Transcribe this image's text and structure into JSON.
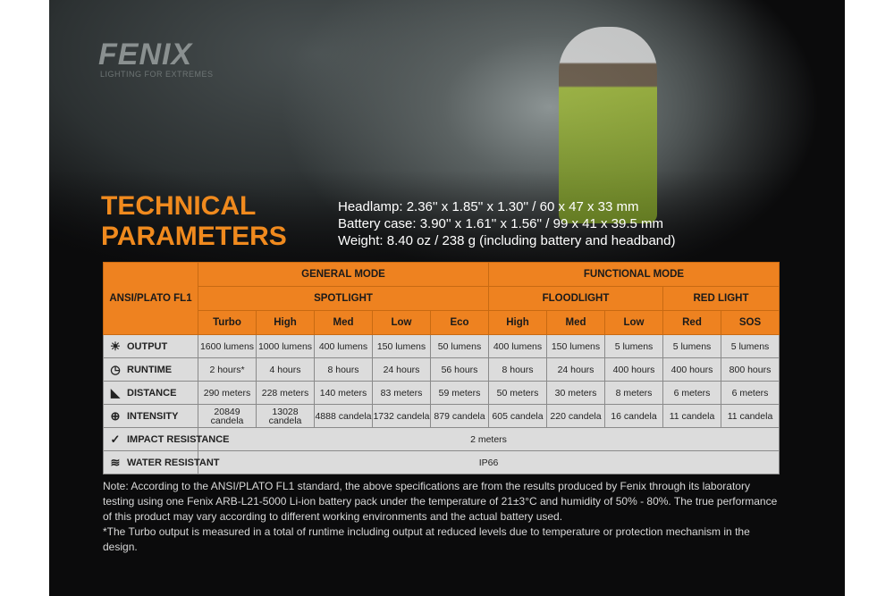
{
  "brand": {
    "logo": "FENIX",
    "tagline": "LIGHTING FOR EXTREMES"
  },
  "title": {
    "line1": "TECHNICAL",
    "line2": "PARAMETERS"
  },
  "specs": [
    "Headlamp: 2.36'' x 1.85'' x 1.30'' / 60 x 47 x 33 mm",
    "Battery case: 3.90'' x 1.61'' x 1.56'' / 99 x 41 x 39.5 mm",
    "Weight: 8.40 oz / 238 g (including battery and headband)"
  ],
  "table": {
    "corner": "ANSI/PLATO FL1",
    "modes": [
      "GENERAL MODE",
      "FUNCTIONAL MODE"
    ],
    "groups": [
      "SPOTLIGHT",
      "FLOODLIGHT",
      "RED LIGHT"
    ],
    "levels": [
      "Turbo",
      "High",
      "Med",
      "Low",
      "Eco",
      "High",
      "Med",
      "Low",
      "Red",
      "SOS"
    ],
    "rows": [
      {
        "label": "OUTPUT",
        "icon": "light-burst-icon",
        "values": [
          "1600 lumens",
          "1000 lumens",
          "400 lumens",
          "150 lumens",
          "50 lumens",
          "400 lumens",
          "150 lumens",
          "5 lumens",
          "5 lumens",
          "5 lumens"
        ]
      },
      {
        "label": "RUNTIME",
        "icon": "clock-icon",
        "values": [
          "2 hours*",
          "4 hours",
          "8 hours",
          "24 hours",
          "56 hours",
          "8 hours",
          "24 hours",
          "400 hours",
          "400 hours",
          "800 hours"
        ]
      },
      {
        "label": "DISTANCE",
        "icon": "beam-distance-icon",
        "values": [
          "290 meters",
          "228 meters",
          "140 meters",
          "83 meters",
          "59 meters",
          "50 meters",
          "30 meters",
          "8 meters",
          "6 meters",
          "6 meters"
        ]
      },
      {
        "label": "INTENSITY",
        "icon": "target-icon",
        "values": [
          "20849 candela",
          "13028 candela",
          "4888 candela",
          "1732 candela",
          "879 candela",
          "605 candela",
          "220 candela",
          "16 candela",
          "11 candela",
          "11 candela"
        ]
      }
    ],
    "impact": {
      "label": "IMPACT RESISTANCE",
      "icon": "impact-icon",
      "value": "2 meters"
    },
    "water": {
      "label": "WATER RESISTANT",
      "icon": "water-icon",
      "value": "IP66"
    }
  },
  "notes": [
    "Note: According to the ANSI/PLATO FL1 standard, the above specifications are from the results produced by Fenix through its laboratory testing using one Fenix ARB-L21-5000 Li-ion battery pack under the temperature of 21±3°C and humidity of 50% - 80%. The true performance of this product may vary according to different working environments and the actual battery used.",
    "*The Turbo output is measured in a total of runtime including output at reduced levels due to temperature or protection mechanism in the design."
  ]
}
